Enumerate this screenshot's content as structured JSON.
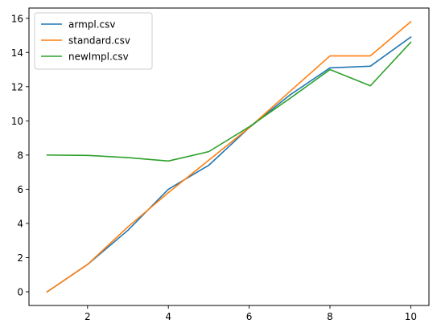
{
  "chart_data": {
    "type": "line",
    "title": "",
    "xlabel": "",
    "ylabel": "",
    "x": [
      1,
      2,
      3,
      4,
      5,
      6,
      7,
      8,
      9,
      10
    ],
    "xlim": [
      0.55,
      10.45
    ],
    "ylim": [
      -0.8,
      16.6
    ],
    "xticks": [
      2,
      4,
      6,
      8,
      10
    ],
    "yticks": [
      0,
      2,
      4,
      6,
      8,
      10,
      12,
      14,
      16
    ],
    "grid": false,
    "legend": {
      "placement": "upper-left"
    },
    "series": [
      {
        "name": "armpl.csv",
        "color": "#1f77b4",
        "values": [
          0.0,
          1.6,
          3.6,
          6.0,
          7.4,
          9.6,
          11.5,
          13.1,
          13.2,
          14.9
        ]
      },
      {
        "name": "standard.csv",
        "color": "#ff7f0e",
        "values": [
          0.0,
          1.6,
          3.8,
          5.8,
          7.7,
          9.6,
          11.7,
          13.8,
          13.8,
          15.8
        ]
      },
      {
        "name": "newImpl.csv",
        "color": "#2ca02c",
        "values": [
          8.0,
          7.98,
          7.85,
          7.65,
          8.2,
          9.65,
          11.3,
          13.0,
          12.05,
          14.6
        ]
      }
    ]
  }
}
